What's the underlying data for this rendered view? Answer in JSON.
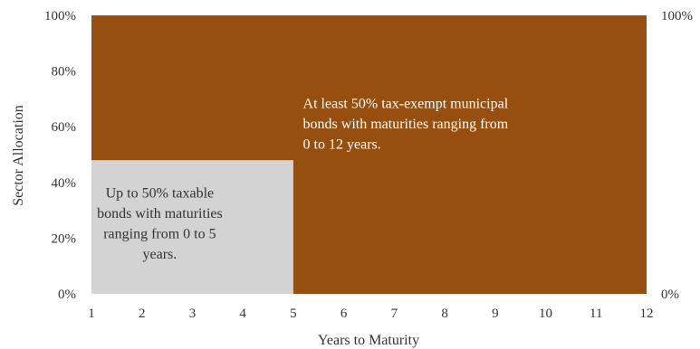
{
  "chart_data": {
    "type": "area",
    "xlabel": "Years to Maturity",
    "ylabel": "Sector Allocation",
    "xlim": [
      1,
      12
    ],
    "ylim": [
      0,
      100
    ],
    "x_ticks": [
      "1",
      "2",
      "3",
      "4",
      "5",
      "6",
      "7",
      "8",
      "9",
      "10",
      "11",
      "12"
    ],
    "y_ticks": [
      "0%",
      "20%",
      "40%",
      "60%",
      "80%",
      "100%"
    ],
    "y2_ticks": [
      "0%",
      "100%"
    ],
    "grid": false,
    "regions": [
      {
        "name": "municipal",
        "x_range": [
          1,
          12
        ],
        "y_range": [
          0,
          100
        ],
        "color": "#974f0f",
        "text_color": "#ffffff",
        "label_lines": [
          "At least 50% tax-exempt municipal",
          "bonds with maturities ranging from",
          "0 to 12 years."
        ]
      },
      {
        "name": "taxable",
        "x_range": [
          1,
          5
        ],
        "y_range": [
          0,
          48
        ],
        "color": "#d4d3d4",
        "text_color": "#333333",
        "label_lines": [
          "Up to 50% taxable",
          "bonds with maturities",
          "ranging from 0 to 5",
          "years."
        ]
      }
    ]
  }
}
